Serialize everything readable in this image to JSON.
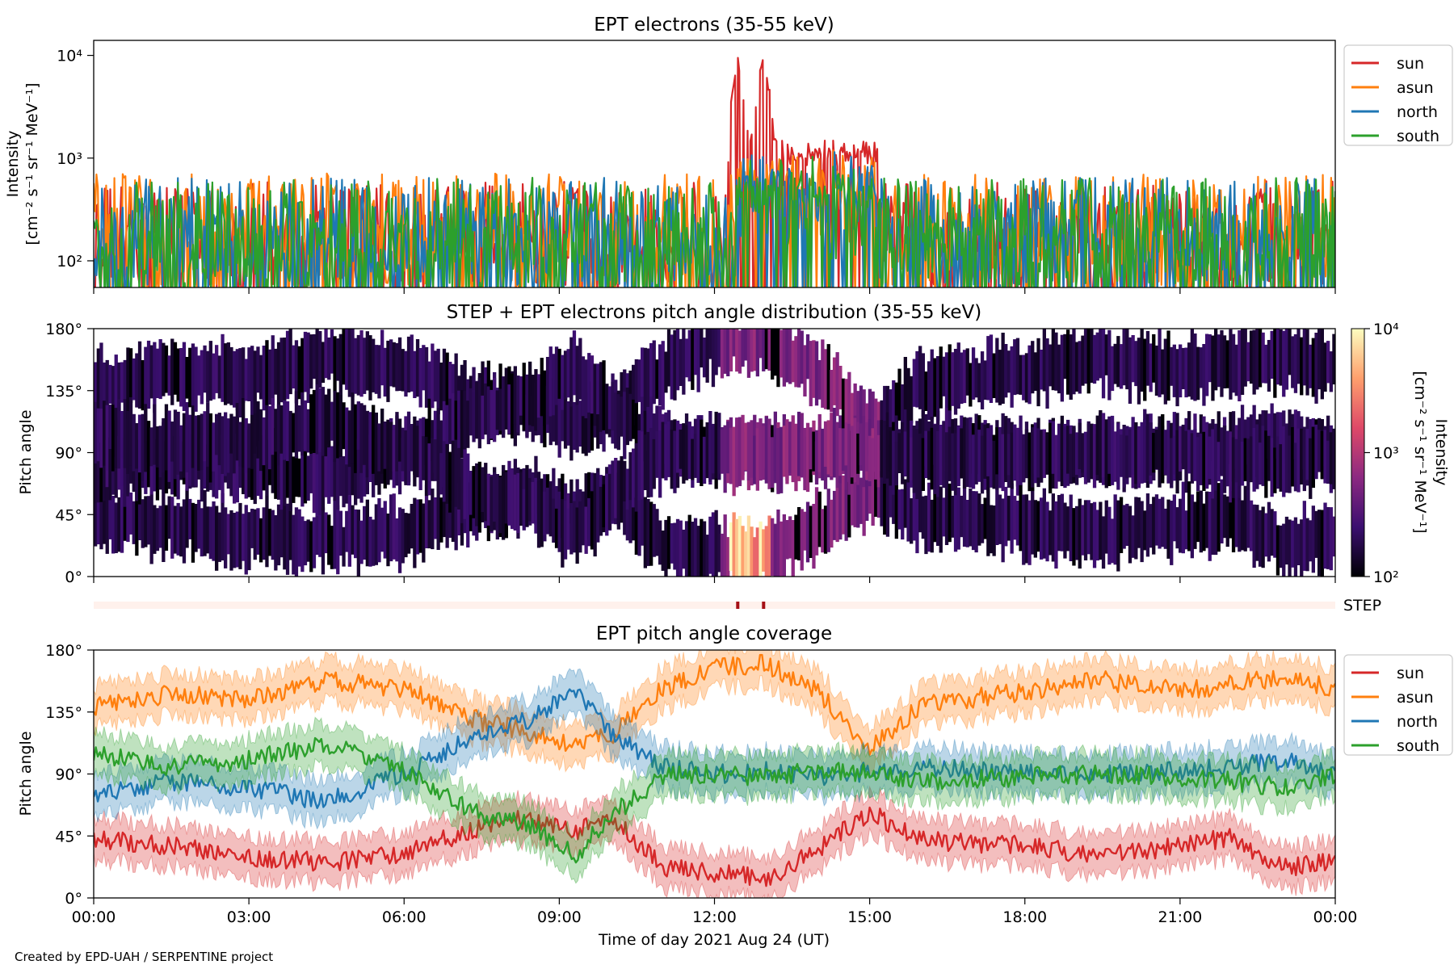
{
  "footer": {
    "credit": "Created by EPD-UAH / SERPENTINE project"
  },
  "chart_data": [
    {
      "type": "line",
      "title": "EPT electrons (35-55 keV)",
      "ylabel": "Intensity",
      "ylabel_units": "[cm⁻² s⁻¹ sr⁻¹ MeV⁻¹]",
      "yscale": "log",
      "ylim": [
        55,
        14000
      ],
      "yticks": [
        {
          "value": 100,
          "label": "10²"
        },
        {
          "value": 1000,
          "label": "10³"
        },
        {
          "value": 10000,
          "label": "10⁴"
        }
      ],
      "xlim": [
        0,
        24
      ],
      "legend": "top-right, outside",
      "series": [
        {
          "name": "sun",
          "color": "#d62728",
          "base": 180,
          "peak": 7800
        },
        {
          "name": "asun",
          "color": "#ff7f0e",
          "base": 220,
          "peak": 900
        },
        {
          "name": "north",
          "color": "#1f77b4",
          "base": 200,
          "peak": 800
        },
        {
          "name": "south",
          "color": "#2ca02c",
          "base": 200,
          "peak": 700
        }
      ],
      "event_window_hours": [
        12.1,
        15.2
      ],
      "peak_hours": [
        12.45,
        12.95
      ]
    },
    {
      "type": "heatmap",
      "title": "STEP + EPT electrons pitch angle distribution (35-55 keV)",
      "ylabel": "Pitch angle",
      "ylim": [
        0,
        180
      ],
      "yticks": [
        "0°",
        "45°",
        "90°",
        "135°",
        "180°"
      ],
      "xlim": [
        0,
        24
      ],
      "colorbar": {
        "label": "Intensity",
        "units": "[cm⁻² s⁻¹ sr⁻¹ MeV⁻¹]",
        "scale": "log",
        "range": [
          100,
          10000
        ],
        "ticks": [
          {
            "value": 100,
            "label": "10²"
          },
          {
            "value": 1000,
            "label": "10³"
          },
          {
            "value": 10000,
            "label": "10⁴"
          }
        ],
        "colormap": [
          "#000004",
          "#3b0f70",
          "#8c2981",
          "#de4968",
          "#fe9f6d",
          "#fcfdbf"
        ]
      }
    },
    {
      "type": "heatmap",
      "title": "",
      "label": "STEP",
      "xlim": [
        0,
        24
      ],
      "base_color": "#fff1ec",
      "marks_hours": [
        12.45,
        12.95
      ],
      "mark_color": "#a50f15"
    },
    {
      "type": "area",
      "title": "EPT pitch angle coverage",
      "ylabel": "Pitch angle",
      "ylim": [
        0,
        180
      ],
      "yticks": [
        "0°",
        "45°",
        "90°",
        "135°",
        "180°"
      ],
      "xlim": [
        0,
        24
      ],
      "xlabel": "Time of day 2021 Aug 24 (UT)",
      "xticks": [
        "00:00",
        "03:00",
        "06:00",
        "09:00",
        "12:00",
        "15:00",
        "18:00",
        "21:00",
        "00:00"
      ],
      "legend": "top-right, outside",
      "band_halfwidth_deg": 15,
      "series": [
        {
          "name": "sun",
          "color": "#d62728",
          "knots": [
            [
              0,
              42
            ],
            [
              1.5,
              38
            ],
            [
              3,
              30
            ],
            [
              4.5,
              26
            ],
            [
              6,
              32
            ],
            [
              7.5,
              52
            ],
            [
              8.5,
              58
            ],
            [
              9.3,
              48
            ],
            [
              10,
              60
            ],
            [
              11,
              22
            ],
            [
              12,
              18
            ],
            [
              13,
              14
            ],
            [
              14,
              35
            ],
            [
              15,
              62
            ],
            [
              16,
              42
            ],
            [
              18,
              38
            ],
            [
              19.5,
              30
            ],
            [
              21,
              38
            ],
            [
              22,
              44
            ],
            [
              23,
              22
            ],
            [
              24,
              28
            ]
          ]
        },
        {
          "name": "asun",
          "color": "#ff7f0e",
          "knots": [
            [
              0,
              138
            ],
            [
              1.5,
              148
            ],
            [
              3,
              145
            ],
            [
              4.5,
              158
            ],
            [
              6,
              152
            ],
            [
              7.5,
              128
            ],
            [
              8.5,
              120
            ],
            [
              9.3,
              110
            ],
            [
              10,
              118
            ],
            [
              11,
              152
            ],
            [
              12,
              168
            ],
            [
              13,
              170
            ],
            [
              14,
              150
            ],
            [
              15,
              108
            ],
            [
              16,
              140
            ],
            [
              18,
              150
            ],
            [
              19.5,
              158
            ],
            [
              21,
              150
            ],
            [
              22,
              155
            ],
            [
              23,
              160
            ],
            [
              24,
              152
            ]
          ]
        },
        {
          "name": "north",
          "color": "#1f77b4",
          "knots": [
            [
              0,
              75
            ],
            [
              1.5,
              85
            ],
            [
              3,
              80
            ],
            [
              4.5,
              70
            ],
            [
              6,
              90
            ],
            [
              7.5,
              120
            ],
            [
              8.5,
              130
            ],
            [
              9.3,
              150
            ],
            [
              10,
              120
            ],
            [
              11,
              95
            ],
            [
              12,
              90
            ],
            [
              13,
              92
            ],
            [
              14,
              88
            ],
            [
              15,
              92
            ],
            [
              16,
              95
            ],
            [
              18,
              90
            ],
            [
              19.5,
              90
            ],
            [
              21,
              92
            ],
            [
              22,
              95
            ],
            [
              23,
              100
            ],
            [
              24,
              90
            ]
          ]
        },
        {
          "name": "south",
          "color": "#2ca02c",
          "knots": [
            [
              0,
              105
            ],
            [
              1.5,
              95
            ],
            [
              3,
              100
            ],
            [
              4.5,
              112
            ],
            [
              6,
              92
            ],
            [
              7.5,
              60
            ],
            [
              8.5,
              52
            ],
            [
              9.3,
              30
            ],
            [
              10,
              60
            ],
            [
              11,
              88
            ],
            [
              12,
              90
            ],
            [
              13,
              88
            ],
            [
              14,
              92
            ],
            [
              15,
              90
            ],
            [
              16,
              85
            ],
            [
              18,
              88
            ],
            [
              19.5,
              90
            ],
            [
              21,
              88
            ],
            [
              22,
              85
            ],
            [
              23,
              80
            ],
            [
              24,
              88
            ]
          ]
        }
      ]
    }
  ]
}
